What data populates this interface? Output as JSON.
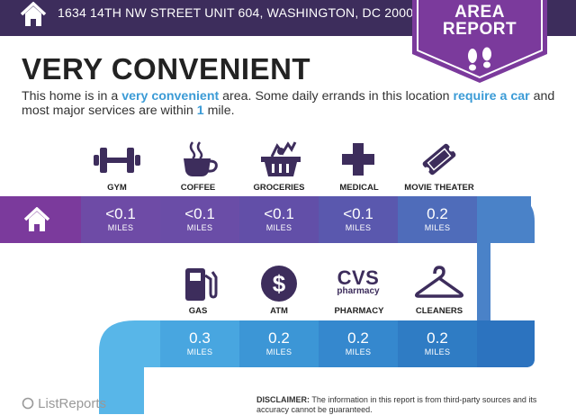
{
  "header": {
    "address": "1634 14TH NW STREET UNIT 604, WASHINGTON, DC 20009"
  },
  "badge": {
    "line1": "AREA",
    "line2": "REPORT"
  },
  "title": "VERY CONVENIENT",
  "description": {
    "p1": "This home is in a ",
    "b1": "very convenient",
    "p2": " area. Some daily errands in this location ",
    "b2": "require a car",
    "p3": " and most major services are within ",
    "b3": "1",
    "p4": " mile."
  },
  "row1": {
    "amenities": [
      {
        "label": "GYM",
        "value": "<0.1",
        "unit": "MILES",
        "icon": "dumbbell-icon"
      },
      {
        "label": "COFFEE",
        "value": "<0.1",
        "unit": "MILES",
        "icon": "coffee-cup-icon"
      },
      {
        "label": "GROCERIES",
        "value": "<0.1",
        "unit": "MILES",
        "icon": "grocery-basket-icon"
      },
      {
        "label": "MEDICAL",
        "value": "<0.1",
        "unit": "MILES",
        "icon": "medical-cross-icon"
      },
      {
        "label": "MOVIE THEATER",
        "value": "0.2",
        "unit": "MILES",
        "icon": "movie-ticket-icon"
      }
    ]
  },
  "row2": {
    "amenities": [
      {
        "label": "GAS",
        "value": "0.3",
        "unit": "MILES",
        "icon": "gas-pump-icon"
      },
      {
        "label": "ATM",
        "value": "0.2",
        "unit": "MILES",
        "icon": "dollar-icon"
      },
      {
        "label": "PHARMACY",
        "value": "0.2",
        "unit": "MILES",
        "icon": "cvs-pharmacy-logo"
      },
      {
        "label": "CLEANERS",
        "value": "0.2",
        "unit": "MILES",
        "icon": "hanger-icon"
      }
    ]
  },
  "logo": {
    "cvs_top": "CVS",
    "cvs_bottom": "pharmacy"
  },
  "footer": {
    "brand": "ListReports",
    "disclaimer_label": "DISCLAIMER:",
    "disclaimer_text": " The information in this report is from third-party sources and its accuracy cannot be guaranteed."
  },
  "colors": {
    "header": "#3d2d5c",
    "badge": "#7b3a9c",
    "icon": "#3d2d5c",
    "accent": "#3b9bd6",
    "row1_segments": [
      "#7a40a0",
      "#6e4ba6",
      "#624fa8",
      "#5757ad",
      "#4f6cba",
      "#4a82c8"
    ],
    "row2_segments": [
      "#48a6e0",
      "#3c96d6",
      "#3588ce",
      "#2f7cc4",
      "#2c73bf"
    ],
    "path_light": "#58b6e8"
  }
}
